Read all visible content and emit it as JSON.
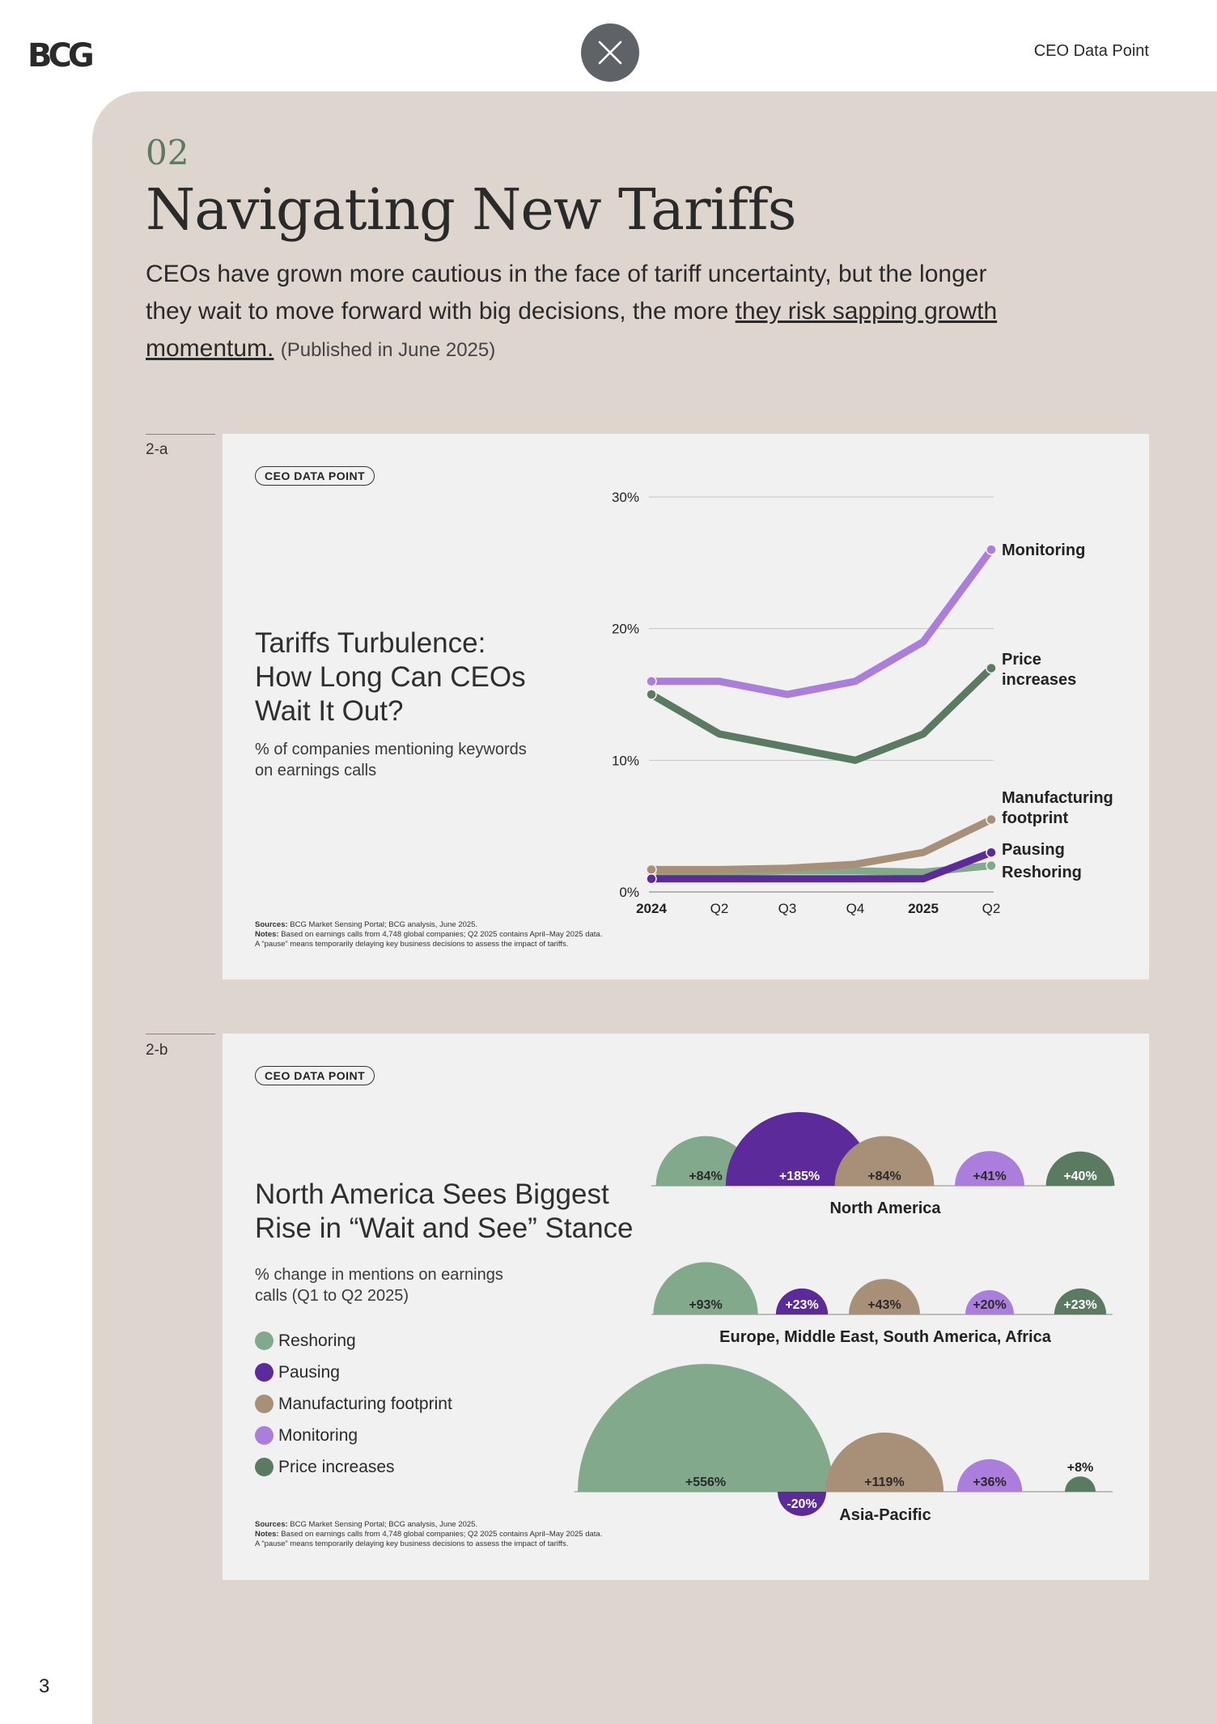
{
  "header": {
    "logo": "BCG",
    "section_label": "CEO Data Point"
  },
  "section": {
    "number": "02",
    "title": "Navigating New Tariffs",
    "intro_text": "CEOs have grown more cautious in the face of tariff uncertainty, but the longer they wait to move forward with big decisions, the more",
    "intro_link": "they risk sapping growth momentum.",
    "published": "(Published in June 2025)"
  },
  "colors": {
    "reshoring": "#82a98c",
    "pausing": "#5c2a9a",
    "manufacturing": "#a89078",
    "monitoring": "#ab7ddc",
    "price": "#5a7a62"
  },
  "figure_a": {
    "label": "2-a",
    "badge": "CEO DATA POINT",
    "title_lines": [
      "Tariffs Turbulence:",
      "How Long Can CEOs",
      "Wait It Out?"
    ],
    "subtitle_lines": [
      "% of companies mentioning keywords",
      "on earnings calls"
    ],
    "notes": {
      "sources_label": "Sources:",
      "sources": "BCG Market Sensing Portal; BCG analysis, June 2025.",
      "notes_label": "Notes:",
      "notes": "Based on earnings calls from 4,748 global companies; Q2 2025 contains April–May 2025 data.",
      "pause_note": "A “pause” means temporarily delaying key business decisions to assess the impact of tariffs."
    }
  },
  "figure_b": {
    "label": "2-b",
    "badge": "CEO DATA POINT",
    "title_lines": [
      "North America Sees Biggest",
      "Rise in “Wait and See” Stance"
    ],
    "subtitle_lines": [
      "% change in mentions on earnings",
      "calls (Q1 to Q2 2025)"
    ],
    "legend": [
      {
        "label": "Reshoring",
        "color": "#82a98c"
      },
      {
        "label": "Pausing",
        "color": "#5c2a9a"
      },
      {
        "label": "Manufacturing footprint",
        "color": "#a89078"
      },
      {
        "label": "Monitoring",
        "color": "#ab7ddc"
      },
      {
        "label": "Price increases",
        "color": "#5a7a62"
      }
    ],
    "notes": {
      "sources_label": "Sources:",
      "sources": "BCG Market Sensing Portal; BCG analysis, June 2025.",
      "notes_label": "Notes:",
      "notes": "Based on earnings calls from 4,748 global companies; Q2 2025 contains April–May 2025 data.",
      "pause_note": "A “pause” means temporarily delaying key business decisions to assess the impact of tariffs."
    }
  },
  "chart_data": [
    {
      "type": "line",
      "x": [
        "2024",
        "Q2",
        "Q3",
        "Q4",
        "2025",
        "Q2"
      ],
      "y_ticks": [
        "0%",
        "10%",
        "20%",
        "30%"
      ],
      "ylim": [
        0,
        30
      ],
      "grid": true,
      "series": [
        {
          "name": "Monitoring",
          "color": "#ab7ddc",
          "values": [
            16,
            16,
            15,
            16,
            19,
            26
          ]
        },
        {
          "name": "Price increases",
          "color": "#5a7a62",
          "values": [
            15,
            12,
            11,
            10,
            12,
            17
          ]
        },
        {
          "name": "Manufacturing footprint",
          "color": "#a89078",
          "values": [
            1.7,
            1.7,
            1.8,
            2.1,
            3,
            5.5
          ]
        },
        {
          "name": "Reshoring",
          "color": "#82a98c",
          "values": [
            1.5,
            1.5,
            1.6,
            1.6,
            1.5,
            2
          ]
        },
        {
          "name": "Pausing",
          "color": "#5c2a9a",
          "values": [
            1,
            1,
            1,
            1,
            1,
            3
          ]
        }
      ]
    },
    {
      "type": "bar",
      "categories": [
        "Reshoring",
        "Pausing",
        "Manufacturing footprint",
        "Monitoring",
        "Price increases"
      ],
      "series": [
        {
          "name": "North America",
          "values": [
            84,
            185,
            84,
            41,
            40
          ],
          "labels": [
            "+84%",
            "+185%",
            "+84%",
            "+41%",
            "+40%"
          ]
        },
        {
          "name": "Europe, Middle East, South America, Africa",
          "values": [
            93,
            23,
            43,
            20,
            23
          ],
          "labels": [
            "+93%",
            "+23%",
            "+43%",
            "+20%",
            "+23%"
          ]
        },
        {
          "name": "Asia-Pacific",
          "values": [
            556,
            -20,
            119,
            36,
            8
          ],
          "labels": [
            "+556%",
            "-20%",
            "+119%",
            "+36%",
            "+8%"
          ]
        }
      ]
    }
  ],
  "page_number": "3"
}
